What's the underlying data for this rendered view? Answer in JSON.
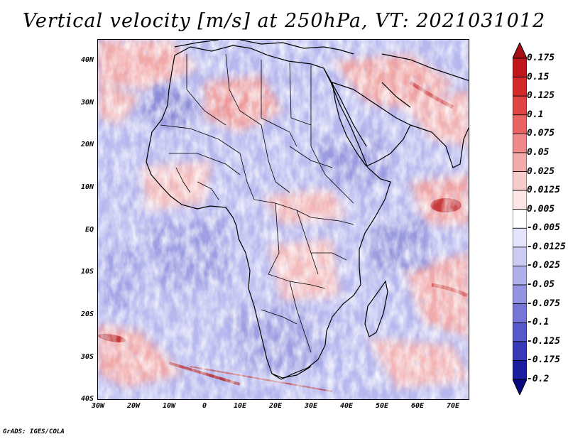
{
  "title": "Vertical velocity [m/s] at 250hPa, VT: 2021031012",
  "footer": "GrADS: IGES/COLA",
  "lat_labels": [
    "40N",
    "30N",
    "20N",
    "10N",
    "EQ",
    "10S",
    "20S",
    "30S",
    "40S"
  ],
  "lon_labels": [
    "30W",
    "20W",
    "10W",
    "0",
    "10E",
    "20E",
    "30E",
    "40E",
    "50E",
    "60E",
    "70E"
  ],
  "colorbar": {
    "labels": [
      "0.175",
      "0.15",
      "0.125",
      "0.1",
      "0.075",
      "0.05",
      "0.025",
      "0.0125",
      "0.005",
      "-0.005",
      "-0.0125",
      "-0.025",
      "-0.05",
      "-0.075",
      "-0.1",
      "-0.125",
      "-0.175",
      "-0.2"
    ],
    "colors": [
      "#a50f15",
      "#c0151b",
      "#d42a2a",
      "#e04444",
      "#ea6464",
      "#f08a8a",
      "#f5aaaa",
      "#f9cccc",
      "#fce6e6",
      "#ffffff",
      "#e4e4fa",
      "#ccccf3",
      "#b0b0ec",
      "#9494e2",
      "#7676d8",
      "#5858cc",
      "#3838b8",
      "#1d1da2",
      "#0a0a80"
    ]
  }
}
